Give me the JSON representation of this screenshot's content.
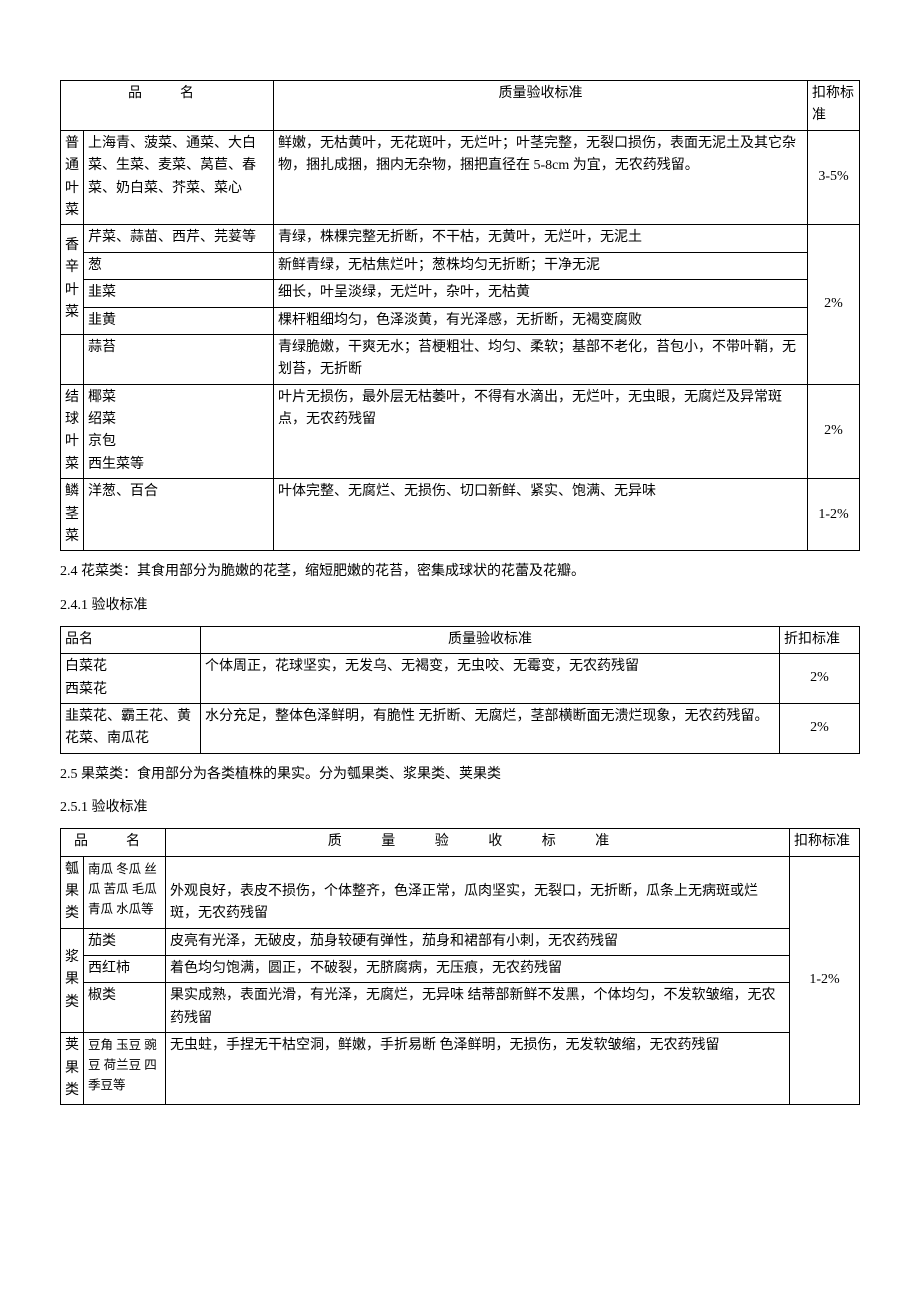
{
  "table1": {
    "headers": {
      "name": "品　名",
      "standard": "质量验收标准",
      "discount": "扣称标准"
    },
    "rows": [
      {
        "category": "普通叶菜",
        "items": "上海青、菠菜、通菜、大白菜、生菜、麦菜、莴苣、春菜、奶白菜、芥菜、菜心",
        "standard": "鲜嫩，无枯黄叶，无花斑叶，无烂叶；叶茎完整，无裂口损伤，表面无泥土及其它杂物，捆扎成捆，捆内无杂物，捆把直径在 5-8cm 为宜，无农药残留。",
        "discount": "3-5%"
      },
      {
        "category": "香辛叶菜",
        "subrows": [
          {
            "items": "芹菜、蒜苗、西芹、芫荽等",
            "standard": "青绿，株棵完整无折断，不干枯，无黄叶，无烂叶，无泥土"
          },
          {
            "items": "葱",
            "standard": "新鲜青绿，无枯焦烂叶；葱株均匀无折断；干净无泥"
          },
          {
            "items": "韭菜",
            "standard": "细长，叶呈淡绿，无烂叶，杂叶，无枯黄"
          },
          {
            "items": "韭黄",
            "standard": "棵杆粗细均匀，色泽淡黄，有光泽感，无折断，无褐变腐败"
          },
          {
            "items": "蒜苔",
            "standard": "青绿脆嫩，干爽无水；苔梗粗壮、均匀、柔软；基部不老化，苔包小，不带叶鞘，无划苔，无折断"
          }
        ],
        "discount": "2%"
      },
      {
        "category": "结球叶菜",
        "items": "椰菜\n绍菜\n京包\n西生菜等",
        "standard": "叶片无损伤，最外层无枯萎叶，不得有水滴出，无烂叶，无虫眼，无腐烂及异常斑点，无农药残留",
        "discount": "2%"
      },
      {
        "category": "鳞茎菜",
        "items": "洋葱、百合",
        "standard": "叶体完整、无腐烂、无损伤、切口新鲜、紧实、饱满、无异味",
        "discount": "1-2%"
      }
    ]
  },
  "section24": "2.4 花菜类：其食用部分为脆嫩的花茎，缩短肥嫩的花苔，密集成球状的花蕾及花瓣。",
  "section241": "2.4.1 验收标准",
  "table2": {
    "headers": {
      "name": "品名",
      "standard": "质量验收标准",
      "discount": "折扣标准"
    },
    "rows": [
      {
        "items1": "白菜花",
        "items2": "西菜花",
        "standard": "个体周正，花球坚实，无发乌、无褐变，无虫咬、无霉变，无农药残留",
        "discount": "2%"
      },
      {
        "items": "韭菜花、霸王花、黄花菜、南瓜花",
        "standard": "水分充足，整体色泽鲜明，有脆性 无折断、无腐烂，茎部横断面无溃烂现象，无农药残留。",
        "discount": "2%"
      }
    ]
  },
  "section25": "2.5 果菜类：食用部分为各类植株的果实。分为瓠果类、浆果类、荚果类",
  "section251": "2.5.1 验收标准",
  "table3": {
    "headers": {
      "name": "品　名",
      "standard": "质 量 验 收 标 准",
      "discount": "扣称标准"
    },
    "rows": [
      {
        "category": "瓠果类",
        "items": "南瓜 冬瓜 丝瓜 苦瓜 毛瓜 青瓜 水瓜等",
        "standard": "外观良好，表皮不损伤，个体整齐，色泽正常，瓜肉坚实，无裂口，无折断，瓜条上无病斑或烂斑，无农药残留"
      },
      {
        "category": "浆果类",
        "subrows": [
          {
            "items": "茄类",
            "standard": "皮亮有光泽，无破皮，茄身较硬有弹性，茄身和裙部有小刺，无农药残留"
          },
          {
            "items": "西红柿",
            "standard": "着色均匀饱满，圆正，不破裂，无脐腐病，无压痕，无农药残留"
          },
          {
            "items": "椒类",
            "standard": "果实成熟，表面光滑，有光泽，无腐烂，无异味 结蒂部新鲜不发黑，个体均匀，不发软皱缩，无农药残留"
          }
        ]
      },
      {
        "category": "荚果类",
        "items": "豆角 玉豆 豌豆 荷兰豆 四季豆等",
        "standard": "无虫蛀，手捏无干枯空洞，鲜嫩，手折易断 色泽鲜明，无损伤，无发软皱缩，无农药残留"
      }
    ],
    "discount": "1-2%"
  }
}
